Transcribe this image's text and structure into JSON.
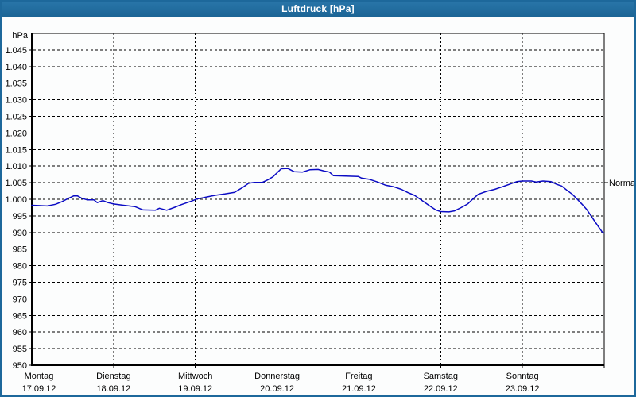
{
  "window": {
    "title": "Luftdruck [hPa]"
  },
  "colors": {
    "titlebar_blue": "#1d689b",
    "line_blue": "#0b0bc4",
    "grid_black": "#000000",
    "background": "#fcfdfd"
  },
  "chart_data": {
    "type": "line",
    "title": "Luftdruck [hPa]",
    "ylabel": "hPa",
    "xlabel": "",
    "ylim": [
      950,
      1050
    ],
    "grid": true,
    "legend_position": "none",
    "y_ticks": [
      {
        "value": 1045,
        "label": "1.045"
      },
      {
        "value": 1040,
        "label": "1.040"
      },
      {
        "value": 1035,
        "label": "1.035"
      },
      {
        "value": 1030,
        "label": "1.030"
      },
      {
        "value": 1025,
        "label": "1.025"
      },
      {
        "value": 1020,
        "label": "1.020"
      },
      {
        "value": 1015,
        "label": "1.015"
      },
      {
        "value": 1010,
        "label": "1.010"
      },
      {
        "value": 1005,
        "label": "1.005"
      },
      {
        "value": 1000,
        "label": "1.000"
      },
      {
        "value": 995,
        "label": "995"
      },
      {
        "value": 990,
        "label": "990"
      },
      {
        "value": 985,
        "label": "985"
      },
      {
        "value": 980,
        "label": "980"
      },
      {
        "value": 975,
        "label": "975"
      },
      {
        "value": 970,
        "label": "970"
      },
      {
        "value": 965,
        "label": "965"
      },
      {
        "value": 960,
        "label": "960"
      },
      {
        "value": 955,
        "label": "955"
      },
      {
        "value": 950,
        "label": "950"
      }
    ],
    "x_days": [
      {
        "name": "Montag",
        "date": "17.09.12"
      },
      {
        "name": "Dienstag",
        "date": "18.09.12"
      },
      {
        "name": "Mittwoch",
        "date": "19.09.12"
      },
      {
        "name": "Donnerstag",
        "date": "20.09.12"
      },
      {
        "name": "Freitag",
        "date": "21.09.12"
      },
      {
        "name": "Samstag",
        "date": "22.09.12"
      },
      {
        "name": "Sonntag",
        "date": "23.09.12"
      }
    ],
    "normal_marker": {
      "label": "Normal",
      "value": 1005
    },
    "series": [
      {
        "name": "Luftdruck",
        "color": "#0b0bc4",
        "x_days": [
          0.0,
          0.19,
          0.29,
          0.37,
          0.44,
          0.51,
          0.56,
          0.61,
          0.68,
          0.76,
          0.8,
          0.87,
          0.93,
          1.0,
          1.12,
          1.26,
          1.36,
          1.51,
          1.56,
          1.65,
          1.75,
          1.83,
          1.9,
          1.96,
          2.02,
          2.12,
          2.24,
          2.36,
          2.48,
          2.58,
          2.65,
          2.72,
          2.82,
          2.89,
          2.95,
          3.0,
          3.05,
          3.13,
          3.21,
          3.31,
          3.4,
          3.5,
          3.58,
          3.64,
          3.69,
          3.84,
          3.99,
          4.03,
          4.13,
          4.23,
          4.33,
          4.42,
          4.52,
          4.6,
          4.68,
          4.74,
          4.81,
          4.88,
          4.94,
          5.0,
          5.1,
          5.17,
          5.25,
          5.33,
          5.39,
          5.46,
          5.56,
          5.66,
          5.76,
          5.85,
          5.93,
          6.0,
          6.11,
          6.17,
          6.25,
          6.35,
          6.42,
          6.48,
          6.54,
          6.61,
          6.67,
          6.73,
          6.79,
          6.84,
          6.9,
          6.95,
          6.98,
          7.0
        ],
        "values": [
          998.2,
          998.0,
          998.5,
          999.3,
          1000.2,
          1001.0,
          1001.0,
          1000.3,
          999.8,
          999.8,
          999.0,
          999.6,
          999.0,
          998.6,
          998.2,
          997.8,
          996.8,
          996.7,
          997.3,
          996.7,
          997.6,
          998.4,
          999.0,
          999.5,
          1000.1,
          1000.6,
          1001.2,
          1001.6,
          1002.1,
          1003.6,
          1004.8,
          1005.1,
          1005.1,
          1005.9,
          1006.8,
          1008.0,
          1009.2,
          1009.3,
          1008.3,
          1008.2,
          1008.9,
          1009.0,
          1008.5,
          1008.2,
          1007.1,
          1007.0,
          1006.9,
          1006.4,
          1006.0,
          1005.2,
          1004.2,
          1003.8,
          1003.0,
          1002.0,
          1001.2,
          1000.2,
          999.0,
          997.8,
          996.8,
          996.3,
          996.2,
          996.5,
          997.5,
          998.6,
          1000.0,
          1001.5,
          1002.4,
          1003.0,
          1003.8,
          1004.6,
          1005.3,
          1005.5,
          1005.5,
          1005.2,
          1005.5,
          1005.3,
          1004.5,
          1004.0,
          1002.8,
          1001.5,
          1000.0,
          998.5,
          996.8,
          995.0,
          992.8,
          991.0,
          990.0,
          989.8
        ]
      }
    ]
  }
}
